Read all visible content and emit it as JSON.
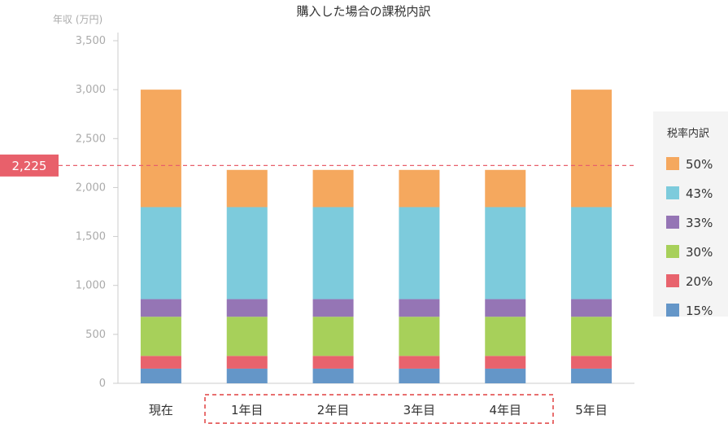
{
  "chart_data": {
    "type": "bar",
    "stacked": true,
    "title": "購入した場合の課税内訳",
    "ylabel": "年収 (万円)",
    "ylim": [
      0,
      3500
    ],
    "yticks": [
      0,
      500,
      1000,
      1500,
      2000,
      2500,
      3000,
      3500
    ],
    "ytick_labels": [
      "0",
      "500",
      "1,000",
      "1,500",
      "2,000",
      "2,500",
      "3,000",
      "3,500"
    ],
    "categories": [
      "現在",
      "1年目",
      "2年目",
      "3年目",
      "4年目",
      "5年目"
    ],
    "highlighted_categories": [
      "1年目",
      "2年目",
      "3年目",
      "4年目"
    ],
    "grid": false,
    "legend_title": "税率内訳",
    "legend_position": "right",
    "reference_line": {
      "value": 2225,
      "label": "2,225",
      "color": "#e8606b"
    },
    "series": [
      {
        "name": "15%",
        "color": "#6496c8",
        "values": [
          150,
          150,
          150,
          150,
          150,
          150
        ]
      },
      {
        "name": "20%",
        "color": "#e8636d",
        "values": [
          130,
          130,
          130,
          130,
          130,
          130
        ]
      },
      {
        "name": "30%",
        "color": "#a7d05a",
        "values": [
          400,
          400,
          400,
          400,
          400,
          400
        ]
      },
      {
        "name": "33%",
        "color": "#9575b5",
        "values": [
          180,
          180,
          180,
          180,
          180,
          180
        ]
      },
      {
        "name": "43%",
        "color": "#7dcbdc",
        "values": [
          940,
          940,
          940,
          940,
          940,
          940
        ]
      },
      {
        "name": "50%",
        "color": "#f5a85e",
        "values": [
          1200,
          380,
          380,
          380,
          380,
          1200
        ]
      }
    ]
  }
}
